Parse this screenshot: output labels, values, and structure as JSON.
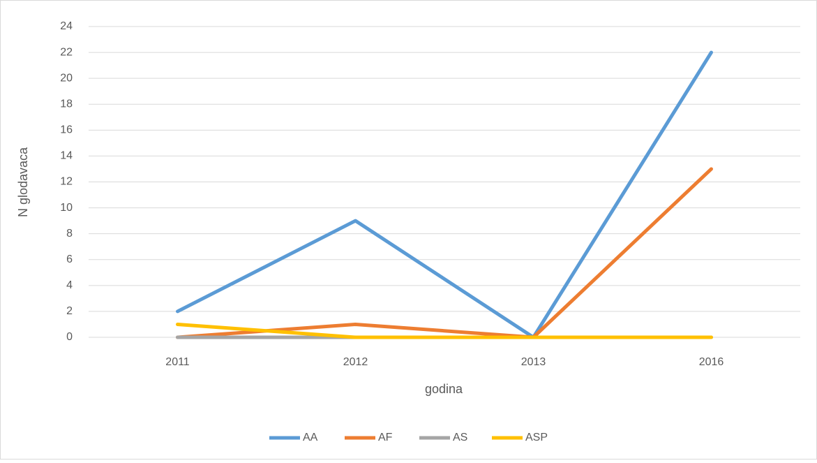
{
  "chart_data": {
    "type": "line",
    "categories": [
      "2011",
      "2012",
      "2013",
      "2016"
    ],
    "series": [
      {
        "name": "AA",
        "color": "#5b9bd5",
        "values": [
          2,
          9,
          0,
          22
        ]
      },
      {
        "name": "AF",
        "color": "#ed7d31",
        "values": [
          0,
          1,
          0,
          13
        ]
      },
      {
        "name": "AS",
        "color": "#a5a5a5",
        "values": [
          0,
          0,
          0,
          0
        ]
      },
      {
        "name": "ASP",
        "color": "#ffc000",
        "values": [
          1,
          0,
          0,
          0
        ]
      }
    ],
    "x_label": "godina",
    "y_label": "N glodavaca",
    "ylim": [
      0,
      24
    ],
    "yticks": [
      0,
      2,
      4,
      6,
      8,
      10,
      12,
      14,
      16,
      18,
      20,
      22,
      24
    ],
    "grid": true,
    "legend": "bottom"
  }
}
